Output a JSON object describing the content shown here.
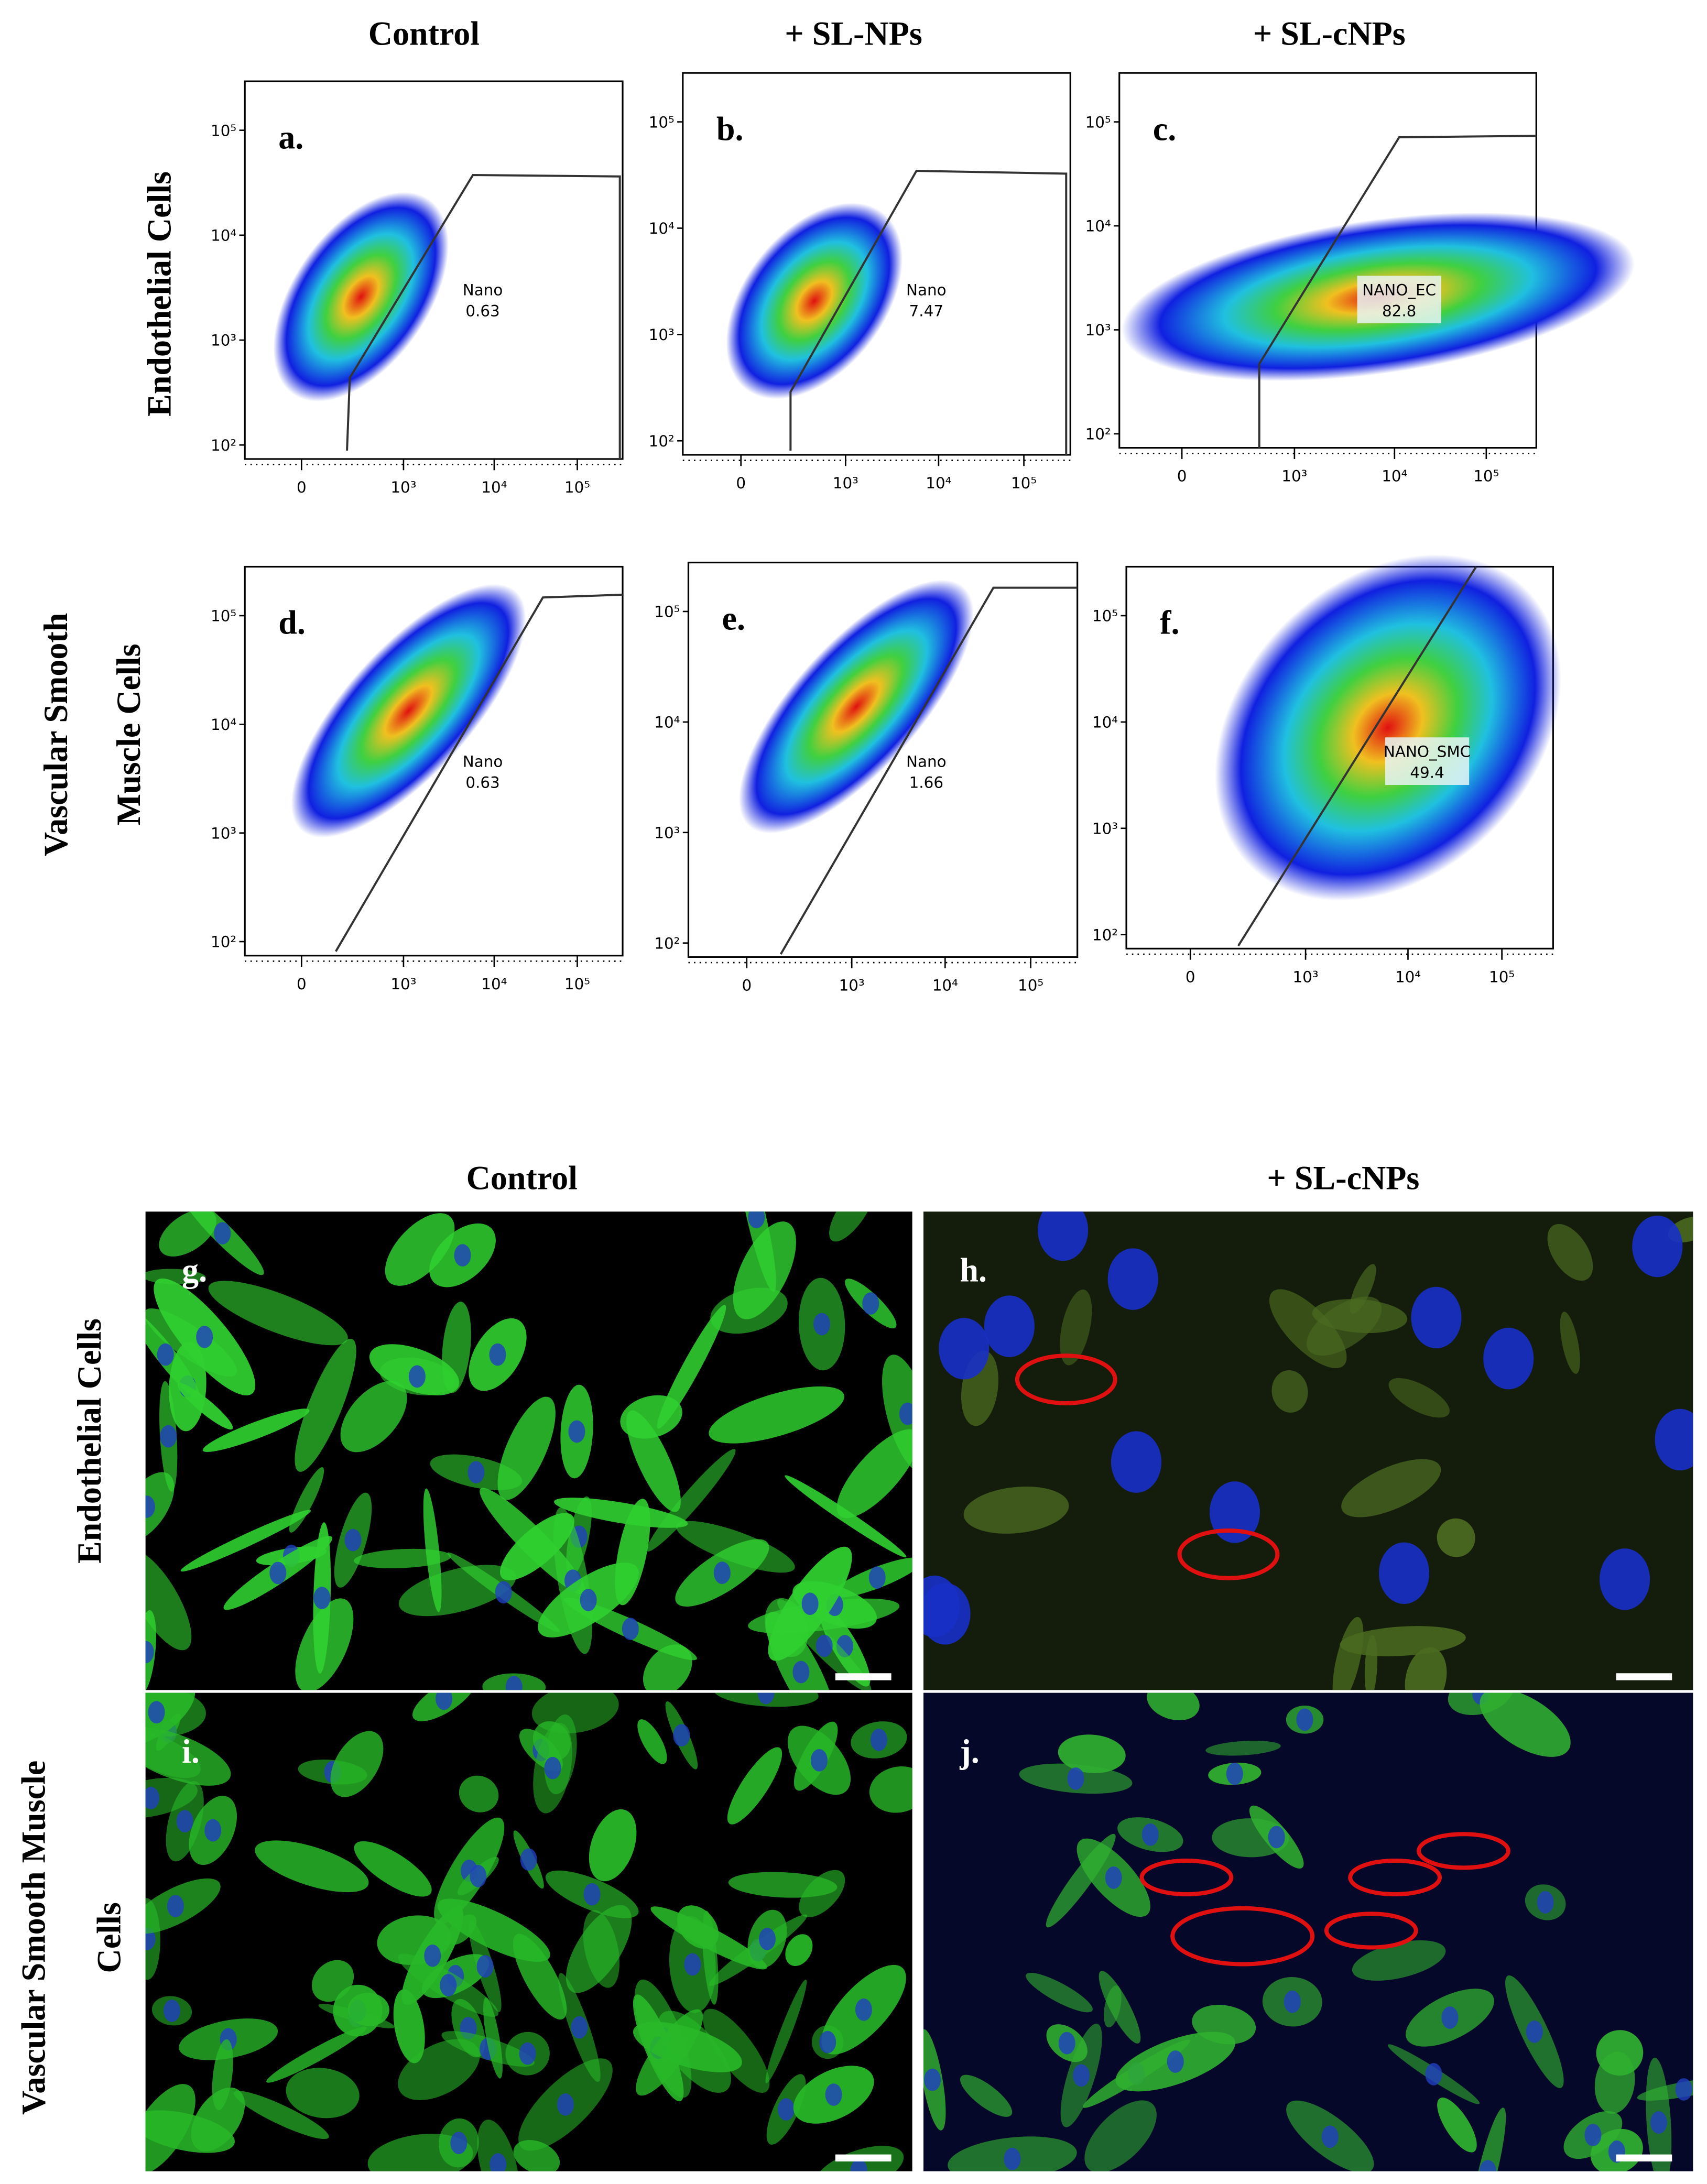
{
  "flow": {
    "column_headers": [
      "Control",
      "+ SL-NPs",
      "+ SL-cNPs"
    ],
    "row_labels": [
      [
        "Endothelial Cells"
      ],
      [
        "Vascular Smooth",
        "Muscle Cells"
      ]
    ],
    "y_ticks": [
      "10⁵",
      "10⁴",
      "10³",
      "10²"
    ],
    "x_ticks": [
      "0",
      "10³",
      "10⁴",
      "10⁵"
    ],
    "panels": [
      {
        "letter": "a.",
        "gate": "Nano",
        "percent": 0.63
      },
      {
        "letter": "b.",
        "gate": "Nano",
        "percent": 7.47
      },
      {
        "letter": "c.",
        "gate": "NANO_EC",
        "percent": 82.8
      },
      {
        "letter": "d.",
        "gate": "Nano",
        "percent": 0.63
      },
      {
        "letter": "e.",
        "gate": "Nano",
        "percent": 1.66
      },
      {
        "letter": "f.",
        "gate": "NANO_SMC",
        "percent": 49.4
      }
    ]
  },
  "microscopy": {
    "column_headers": [
      "Control",
      "+ SL-cNPs"
    ],
    "row_labels": [
      [
        "Endothelial Cells"
      ],
      [
        "Vascular Smooth Muscle",
        "Cells"
      ]
    ],
    "panels": [
      {
        "letter": "g."
      },
      {
        "letter": "h."
      },
      {
        "letter": "i."
      },
      {
        "letter": "j."
      }
    ]
  }
}
